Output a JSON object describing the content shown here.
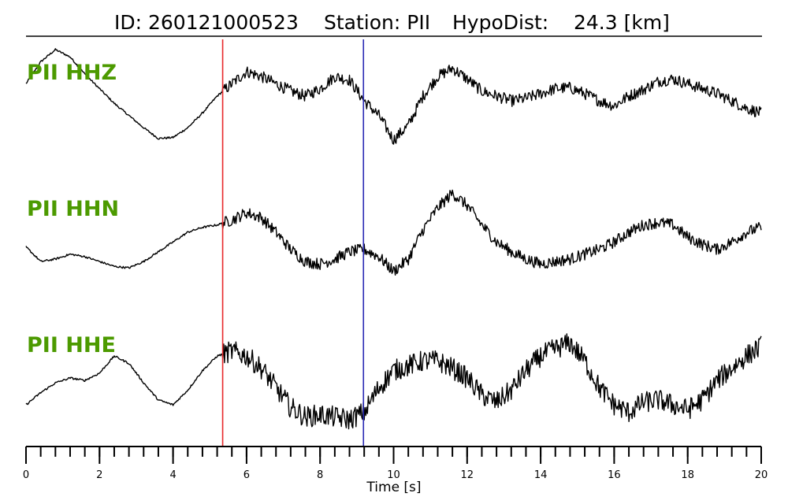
{
  "header": {
    "id_text": "ID: 260121000523",
    "station_text": "Station: PII",
    "dist_text": "HypoDist:    24.3 [km]"
  },
  "colors": {
    "channel_label": "#4c9a00",
    "p_pick": "#e8282a",
    "s_pick": "#2a2ab4",
    "trace": "#000000"
  },
  "chart_data": {
    "type": "line",
    "title": "ID: 260121000523   Station: PII   HypoDist:    24.3 [km]",
    "xlabel": "Time [s]",
    "xlim": [
      0,
      20
    ],
    "x_major_ticks": [
      0,
      2,
      4,
      6,
      8,
      10,
      12,
      14,
      16,
      18,
      20
    ],
    "x_tick_labels": [
      "0",
      "2",
      "4",
      "6",
      "8",
      "10",
      "12",
      "14",
      "16",
      "18",
      "20"
    ],
    "x_minor_step": 0.4,
    "grid": false,
    "picks": [
      {
        "phase": "P",
        "time": 5.35,
        "color": "#e8282a"
      },
      {
        "phase": "S",
        "time": 9.18,
        "color": "#2a2ab4"
      }
    ],
    "series": [
      {
        "name": "PII HHZ",
        "x": [
          0,
          0.4,
          0.8,
          1.2,
          1.6,
          2.0,
          2.4,
          2.8,
          3.2,
          3.6,
          4.0,
          4.4,
          4.8,
          5.2,
          5.6,
          6.0,
          6.4,
          6.8,
          7.2,
          7.6,
          8.0,
          8.4,
          8.8,
          9.2,
          9.6,
          10.0,
          10.4,
          10.8,
          11.2,
          11.6,
          12.0,
          12.4,
          12.8,
          13.2,
          13.6,
          14.0,
          14.4,
          14.8,
          15.2,
          15.6,
          16.0,
          16.4,
          16.8,
          17.2,
          17.6,
          18.0,
          18.4,
          18.8,
          19.2,
          19.6,
          20.0
        ],
        "y": [
          0.3,
          0.75,
          1.0,
          0.85,
          0.5,
          0.2,
          -0.1,
          -0.35,
          -0.6,
          -0.82,
          -0.8,
          -0.6,
          -0.3,
          0.05,
          0.3,
          0.55,
          0.45,
          0.3,
          0.15,
          0.05,
          0.2,
          0.45,
          0.38,
          -0.05,
          -0.35,
          -0.85,
          -0.55,
          0.05,
          0.45,
          0.62,
          0.4,
          0.15,
          0.05,
          -0.05,
          0.0,
          0.1,
          0.2,
          0.22,
          0.1,
          -0.05,
          -0.15,
          0.05,
          0.18,
          0.35,
          0.4,
          0.3,
          0.2,
          0.1,
          -0.05,
          -0.2,
          -0.3
        ]
      },
      {
        "name": "PII HHN",
        "x": [
          0,
          0.4,
          0.8,
          1.2,
          1.6,
          2.0,
          2.4,
          2.8,
          3.2,
          3.6,
          4.0,
          4.4,
          4.8,
          5.2,
          5.6,
          6.0,
          6.4,
          6.8,
          7.2,
          7.6,
          8.0,
          8.4,
          8.8,
          9.2,
          9.6,
          10.0,
          10.4,
          10.8,
          11.2,
          11.6,
          12.0,
          12.4,
          12.8,
          13.2,
          13.6,
          14.0,
          14.4,
          14.8,
          15.2,
          15.6,
          16.0,
          16.4,
          16.8,
          17.2,
          17.6,
          18.0,
          18.4,
          18.8,
          19.2,
          19.6,
          20.0
        ],
        "y": [
          -0.25,
          -0.55,
          -0.5,
          -0.4,
          -0.45,
          -0.55,
          -0.65,
          -0.68,
          -0.55,
          -0.35,
          -0.15,
          0.05,
          0.15,
          0.2,
          0.3,
          0.45,
          0.35,
          0.05,
          -0.3,
          -0.55,
          -0.6,
          -0.5,
          -0.35,
          -0.3,
          -0.45,
          -0.75,
          -0.5,
          0.1,
          0.55,
          0.85,
          0.6,
          0.2,
          -0.15,
          -0.35,
          -0.5,
          -0.6,
          -0.55,
          -0.5,
          -0.4,
          -0.3,
          -0.15,
          0.05,
          0.2,
          0.25,
          0.2,
          -0.05,
          -0.2,
          -0.3,
          -0.15,
          0.05,
          0.15
        ]
      },
      {
        "name": "PII HHE",
        "x": [
          0,
          0.4,
          0.8,
          1.2,
          1.6,
          2.0,
          2.4,
          2.8,
          3.2,
          3.6,
          4.0,
          4.4,
          4.8,
          5.2,
          5.6,
          6.0,
          6.4,
          6.8,
          7.2,
          7.6,
          8.0,
          8.4,
          8.8,
          9.2,
          9.6,
          10.0,
          10.4,
          10.8,
          11.2,
          11.6,
          12.0,
          12.4,
          12.8,
          13.2,
          13.6,
          14.0,
          14.4,
          14.8,
          15.2,
          15.6,
          16.0,
          16.4,
          16.8,
          17.2,
          17.6,
          18.0,
          18.4,
          18.8,
          19.2,
          19.6,
          20.0
        ],
        "y": [
          -0.55,
          -0.3,
          -0.1,
          0.0,
          -0.05,
          0.1,
          0.45,
          0.3,
          -0.1,
          -0.45,
          -0.55,
          -0.25,
          0.15,
          0.45,
          0.55,
          0.45,
          0.2,
          -0.2,
          -0.6,
          -0.8,
          -0.75,
          -0.8,
          -0.85,
          -0.7,
          -0.2,
          0.15,
          0.25,
          0.35,
          0.35,
          0.2,
          0.0,
          -0.35,
          -0.5,
          -0.25,
          0.15,
          0.45,
          0.6,
          0.72,
          0.35,
          -0.2,
          -0.55,
          -0.7,
          -0.5,
          -0.45,
          -0.55,
          -0.65,
          -0.45,
          -0.05,
          0.2,
          0.45,
          0.65
        ]
      }
    ]
  }
}
